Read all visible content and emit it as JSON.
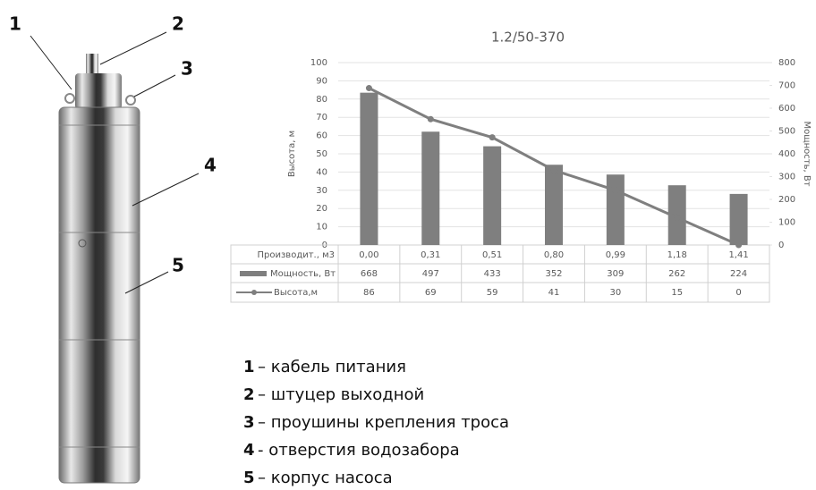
{
  "chart_data": {
    "type": "combo",
    "title": "1.2/50-370",
    "ylabel": "Высота, м",
    "y2label": "Мощность, Вт",
    "table_header": "Производит., м3",
    "categories": [
      "0,00",
      "0,31",
      "0,51",
      "0,80",
      "0,99",
      "1,18",
      "1,41"
    ],
    "series": [
      {
        "name": "Мощность, Вт",
        "type": "bar",
        "axis": "y2",
        "color": "#7f7f7f",
        "values": [
          668,
          497,
          433,
          352,
          309,
          262,
          224
        ]
      },
      {
        "name": "Высота,м",
        "type": "line",
        "axis": "y",
        "color": "#7f7f7f",
        "values": [
          86,
          69,
          59,
          41,
          30,
          15,
          0
        ]
      }
    ],
    "ylim": [
      0,
      100
    ],
    "yticks": [
      0,
      10,
      20,
      30,
      40,
      50,
      60,
      70,
      80,
      90,
      100
    ],
    "y2lim": [
      0,
      800
    ],
    "y2ticks": [
      0,
      100,
      200,
      300,
      400,
      500,
      600,
      700,
      800
    ],
    "grid": true
  },
  "callouts": [
    "1",
    "2",
    "3",
    "4",
    "5"
  ],
  "legend": [
    {
      "number": "1",
      "text": "– кабель питания"
    },
    {
      "number": "2",
      "text": "– штуцер выходной"
    },
    {
      "number": "3",
      "text": "– проушины крепления троса"
    },
    {
      "number": "4",
      "text": "- отверстия водозабора"
    },
    {
      "number": "5",
      "text": "– корпус насоса"
    }
  ]
}
